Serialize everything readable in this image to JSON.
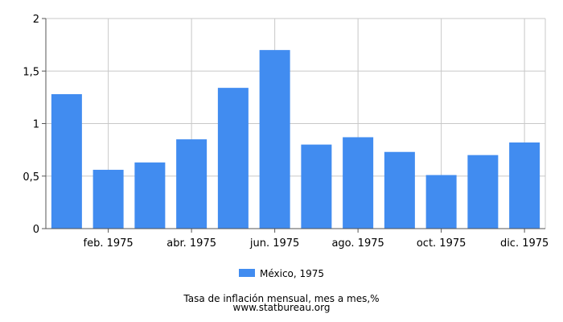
{
  "chart_data": {
    "type": "bar",
    "categories": [
      "ene. 1975",
      "feb. 1975",
      "mar. 1975",
      "abr. 1975",
      "may. 1975",
      "jun. 1975",
      "jul. 1975",
      "ago. 1975",
      "sep. 1975",
      "oct. 1975",
      "nov. 1975",
      "dic. 1975"
    ],
    "x_tick_labels": [
      "",
      "feb. 1975",
      "",
      "abr. 1975",
      "",
      "jun. 1975",
      "",
      "ago. 1975",
      "",
      "oct. 1975",
      "",
      "dic. 1975"
    ],
    "series": [
      {
        "name": "México, 1975",
        "color": "#418cf0",
        "values": [
          1.28,
          0.56,
          0.63,
          0.85,
          1.34,
          1.7,
          0.8,
          0.87,
          0.73,
          0.51,
          0.7,
          0.82
        ]
      }
    ],
    "ylim": [
      0,
      2
    ],
    "y_ticks": [
      0,
      0.5,
      1,
      1.5,
      2
    ],
    "y_tick_labels": [
      "0",
      "0,5",
      "1",
      "1,5",
      "2"
    ],
    "grid": true,
    "legend": "bottom-center"
  },
  "caption": {
    "title": "Tasa de inflación mensual, mes a mes,%",
    "source": "www.statbureau.org"
  }
}
